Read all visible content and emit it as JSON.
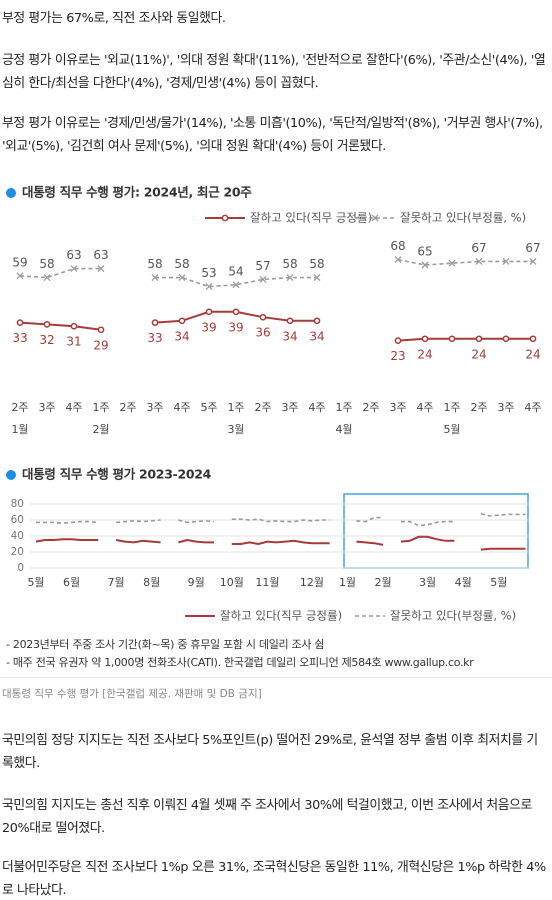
{
  "paragraphs": [
    "부정 평가는 67%로, 직전 조사와 동일했다.",
    "긍정 평가 이유로는 '외교(11%)', '의대 정원 확대'(11%), '전반적으로 잘한다'(6%), '주관/소신'(4%), '열심히 한다/최선을 다한다'(4%), '경제/민생'(4%) 등이 꼽혔다.",
    "부정 평가 이유로는 '경제/민생/물가'(14%), '소통 미흡'(10%), '독단적/일방적'(8%), '거부권 행사'(7%), '외교'(5%), '김건희 여사 문제'(5%), '의대 정원 확대'(4%) 등이 거론됐다.",
    "국민의힘 정당 지지도는 직전 조사보다 5%포인트(p) 떨어진 29%로, 윤석열 정부 출범 이후 최저치를 기록했다.",
    "국민의힘 지지도는 총선 직후 이뤄진 4월 셋째 주 조사에서 30%에 턱걸이했고, 이번 조사에서 처음으로 20%대로 떨어졌다.",
    "더불어민주당은 직전 조사보다 1%p 오른 31%, 조국혁신당은 동일한 11%, 개혁신당은 1%p 하락한 4%로 나타났다."
  ],
  "chart_data": [
    {
      "type": "line",
      "title": "대통령 직무 수행 평가: 2024년, 최근 20주",
      "categories": [
        "2주",
        "3주",
        "4주",
        "1주",
        "2주",
        "3주",
        "4주",
        "5주",
        "1주",
        "2주",
        "3주",
        "4주",
        "1주",
        "2주",
        "3주",
        "4주",
        "1주",
        "2주",
        "3주",
        "4주"
      ],
      "months": [
        "1월",
        null,
        null,
        "2월",
        null,
        null,
        null,
        null,
        "3월",
        null,
        null,
        null,
        "4월",
        null,
        null,
        null,
        "5월",
        null,
        null,
        null
      ],
      "series": [
        {
          "name": "잘하고 있다(직무 긍정률)",
          "color": "#a83a3a",
          "marker": "circle",
          "label_position": "below",
          "values": [
            33,
            32,
            31,
            29,
            null,
            33,
            34,
            39,
            39,
            36,
            34,
            34,
            null,
            null,
            23,
            24,
            24,
            24,
            24,
            24
          ],
          "value_labels": [
            "33",
            "32",
            "31",
            "29",
            null,
            "33",
            "34",
            "39",
            "39",
            "36",
            "34",
            "34",
            null,
            null,
            "23",
            "24",
            null,
            "24",
            null,
            "24"
          ]
        },
        {
          "name": "잘못하고 있다(부정률, %)",
          "color": "#9a9a9a",
          "dash": true,
          "marker": "x",
          "label_position": "above",
          "values": [
            59,
            58,
            63,
            63,
            null,
            58,
            58,
            53,
            54,
            57,
            58,
            58,
            null,
            null,
            68,
            65,
            66,
            67,
            67,
            67
          ],
          "value_labels": [
            "59",
            "58",
            "63",
            "63",
            null,
            "58",
            "58",
            "53",
            "54",
            "57",
            "58",
            "58",
            null,
            null,
            "68",
            "65",
            null,
            "67",
            null,
            "67"
          ]
        }
      ]
    },
    {
      "type": "line",
      "title": "대통령 직무 수행 평가 2023-2024",
      "categories": [
        "5월",
        null,
        null,
        null,
        "6월",
        null,
        null,
        null,
        null,
        "7월",
        null,
        null,
        null,
        "8월",
        null,
        null,
        null,
        null,
        "9월",
        null,
        null,
        null,
        "10월",
        null,
        null,
        null,
        "11월",
        null,
        null,
        null,
        null,
        "12월",
        null,
        null,
        null,
        "1월",
        null,
        null,
        null,
        "2월",
        null,
        null,
        null,
        null,
        "3월",
        null,
        null,
        null,
        "4월",
        null,
        null,
        null,
        "5월",
        null,
        null,
        null
      ],
      "ylim": [
        0,
        80
      ],
      "yticks": [
        0,
        20,
        40,
        60,
        80
      ],
      "grid": true,
      "series": [
        {
          "name": "잘하고 있다(직무 긍정률)",
          "color": "#a83a3a",
          "values": [
            33,
            35,
            35,
            36,
            36,
            35,
            35,
            35,
            null,
            35,
            33,
            32,
            34,
            33,
            32,
            null,
            32,
            35,
            33,
            32,
            32,
            null,
            30,
            30,
            32,
            30,
            33,
            32,
            33,
            34,
            32,
            31,
            31,
            31,
            null,
            null,
            33,
            32,
            31,
            29,
            null,
            33,
            34,
            39,
            39,
            36,
            34,
            34,
            null,
            null,
            23,
            24,
            24,
            24,
            24,
            24
          ]
        },
        {
          "name": "잘못하고 있다(부정률, %)",
          "color": "#9a9a9a",
          "dash": true,
          "values": [
            57,
            57,
            57,
            56,
            57,
            58,
            58,
            57,
            null,
            57,
            58,
            59,
            58,
            59,
            60,
            null,
            60,
            57,
            58,
            59,
            58,
            null,
            61,
            61,
            60,
            61,
            58,
            59,
            58,
            58,
            60,
            59,
            60,
            60,
            null,
            null,
            59,
            58,
            63,
            63,
            null,
            58,
            58,
            53,
            54,
            57,
            58,
            58,
            null,
            null,
            68,
            65,
            66,
            67,
            67,
            67
          ]
        }
      ]
    }
  ],
  "notes": [
    "- 2023년부터 주중 조사 기간(화~목) 중 휴무일 포함 시 데일리 조사 쉼",
    "- 매주 전국 유권자 약 1,000명 전화조사(CATI). 한국갤럽 데일리 오피니언 제584호 www.gallup.co.kr"
  ],
  "caption": "대통령 직무 수행 평가 [한국갤럽 제공. 재판매 및 DB 금지]"
}
